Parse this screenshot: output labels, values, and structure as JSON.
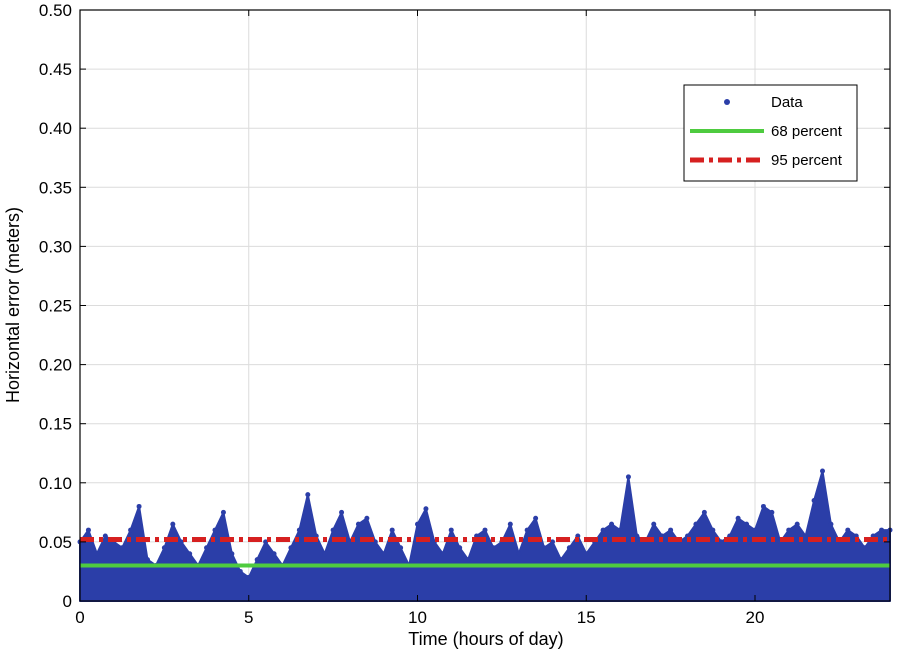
{
  "chart_data": {
    "type": "scatter",
    "title": "",
    "xlabel": "Time (hours of day)",
    "ylabel": "Horizontal error (meters)",
    "xlim": [
      0,
      24
    ],
    "ylim": [
      0,
      0.5
    ],
    "xticks": [
      "0",
      "5",
      "10",
      "15",
      "20"
    ],
    "xtick_values": [
      0,
      5,
      10,
      15,
      20
    ],
    "yticks": [
      "0",
      "0.05",
      "0.10",
      "0.15",
      "0.20",
      "0.25",
      "0.30",
      "0.35",
      "0.40",
      "0.45",
      "0.50"
    ],
    "ytick_values": [
      0,
      0.05,
      0.1,
      0.15,
      0.2,
      0.25,
      0.3,
      0.35,
      0.4,
      0.45,
      0.5
    ],
    "grid": true,
    "legend_position": "top-right",
    "series": [
      {
        "name": "Data",
        "type": "scatter",
        "color": "#2b3ea8",
        "x": [
          0.0,
          0.25,
          0.5,
          0.75,
          1.0,
          1.25,
          1.5,
          1.75,
          2.0,
          2.25,
          2.5,
          2.75,
          3.0,
          3.25,
          3.5,
          3.75,
          4.0,
          4.25,
          4.5,
          4.75,
          5.0,
          5.25,
          5.5,
          5.75,
          6.0,
          6.25,
          6.5,
          6.75,
          7.0,
          7.25,
          7.5,
          7.75,
          8.0,
          8.25,
          8.5,
          8.75,
          9.0,
          9.25,
          9.5,
          9.75,
          10.0,
          10.25,
          10.5,
          10.75,
          11.0,
          11.25,
          11.5,
          11.75,
          12.0,
          12.25,
          12.5,
          12.75,
          13.0,
          13.25,
          13.5,
          13.75,
          14.0,
          14.25,
          14.5,
          14.75,
          15.0,
          15.25,
          15.5,
          15.75,
          16.0,
          16.25,
          16.5,
          16.75,
          17.0,
          17.25,
          17.5,
          17.75,
          18.0,
          18.25,
          18.5,
          18.75,
          19.0,
          19.25,
          19.5,
          19.75,
          20.0,
          20.25,
          20.5,
          20.75,
          21.0,
          21.25,
          21.5,
          21.75,
          22.0,
          22.25,
          22.5,
          22.75,
          23.0,
          23.25,
          23.5,
          23.75,
          24.0
        ],
        "y": [
          0.05,
          0.06,
          0.04,
          0.055,
          0.05,
          0.045,
          0.06,
          0.08,
          0.035,
          0.03,
          0.045,
          0.065,
          0.05,
          0.04,
          0.03,
          0.045,
          0.06,
          0.075,
          0.04,
          0.025,
          0.02,
          0.035,
          0.05,
          0.04,
          0.03,
          0.045,
          0.06,
          0.09,
          0.055,
          0.04,
          0.06,
          0.075,
          0.05,
          0.065,
          0.07,
          0.05,
          0.04,
          0.06,
          0.045,
          0.03,
          0.065,
          0.078,
          0.05,
          0.04,
          0.06,
          0.045,
          0.035,
          0.055,
          0.06,
          0.045,
          0.05,
          0.065,
          0.04,
          0.06,
          0.07,
          0.045,
          0.05,
          0.035,
          0.045,
          0.055,
          0.04,
          0.05,
          0.06,
          0.065,
          0.06,
          0.105,
          0.055,
          0.05,
          0.065,
          0.055,
          0.06,
          0.05,
          0.055,
          0.065,
          0.075,
          0.06,
          0.05,
          0.055,
          0.07,
          0.065,
          0.06,
          0.08,
          0.075,
          0.05,
          0.06,
          0.065,
          0.055,
          0.085,
          0.11,
          0.065,
          0.05,
          0.06,
          0.055,
          0.045,
          0.055,
          0.06,
          0.06
        ]
      },
      {
        "name": "68 percent",
        "type": "line",
        "style": "solid",
        "color": "#4ecb3f",
        "x": [
          0,
          24
        ],
        "y": [
          0.03,
          0.03
        ]
      },
      {
        "name": "95 percent",
        "type": "line",
        "style": "dashed",
        "color": "#d62020",
        "x": [
          0,
          24
        ],
        "y": [
          0.052,
          0.052
        ]
      }
    ]
  }
}
